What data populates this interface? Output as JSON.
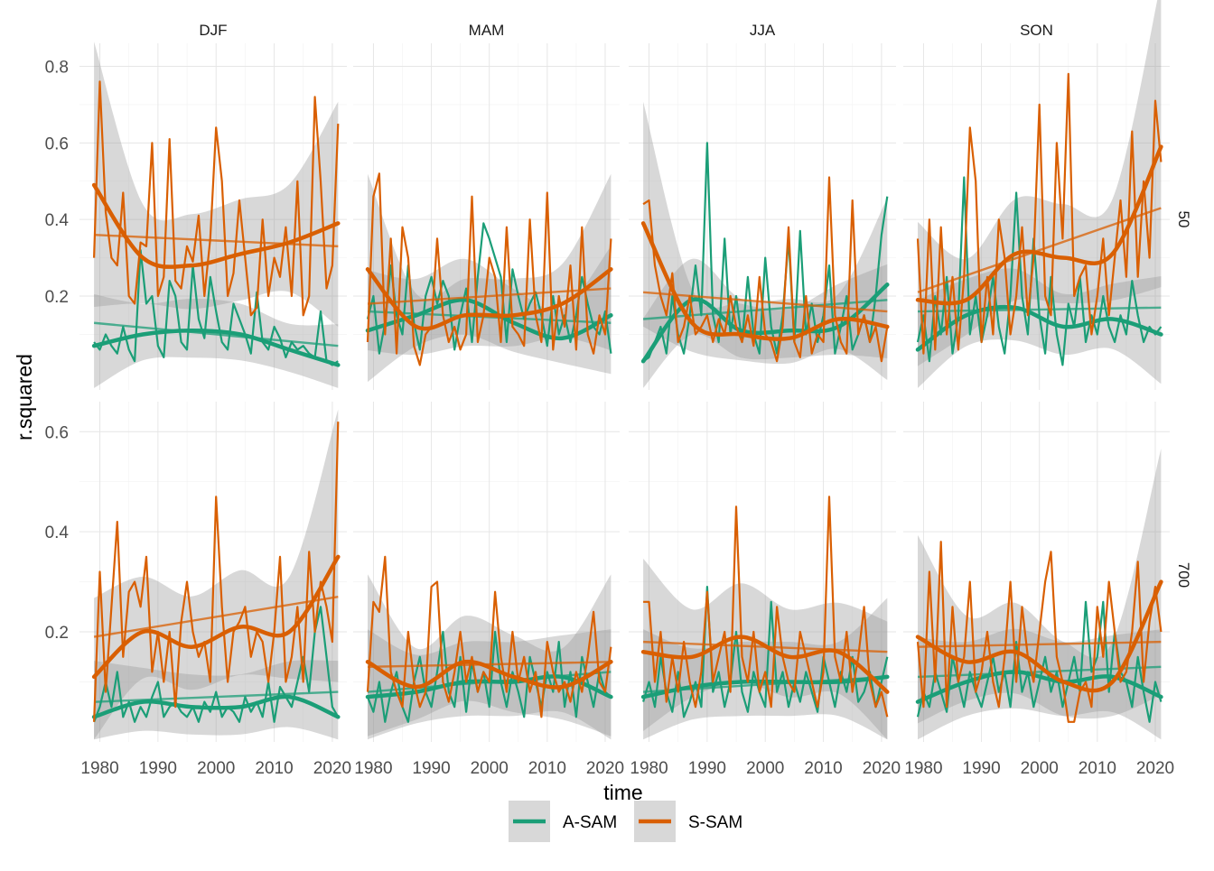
{
  "chart_data": {
    "type": "line",
    "xlabel": "time",
    "ylabel": "r.squared",
    "columns": [
      "DJF",
      "MAM",
      "JJA",
      "SON"
    ],
    "rows": [
      "50",
      "700"
    ],
    "x_ticks": [
      1980,
      1990,
      2000,
      2010,
      2020
    ],
    "xlim": [
      1976.5,
      2022.5
    ],
    "grid": true,
    "legend_position": "bottom",
    "legend": [
      {
        "name": "A-SAM",
        "color": "#1b9e77"
      },
      {
        "name": "S-SAM",
        "color": "#d95f02"
      }
    ],
    "years": [
      1979,
      1980,
      1981,
      1982,
      1983,
      1984,
      1985,
      1986,
      1987,
      1988,
      1989,
      1990,
      1991,
      1992,
      1993,
      1994,
      1995,
      1996,
      1997,
      1998,
      1999,
      2000,
      2001,
      2002,
      2003,
      2004,
      2005,
      2006,
      2007,
      2008,
      2009,
      2010,
      2011,
      2012,
      2013,
      2014,
      2015,
      2016,
      2017,
      2018,
      2019,
      2020,
      2021
    ],
    "rows_meta": [
      {
        "label": "50",
        "ylim": [
          -0.045,
          0.86
        ],
        "y_ticks": [
          0.2,
          0.4,
          0.6,
          0.8
        ]
      },
      {
        "label": "700",
        "ylim": [
          -0.02,
          0.66
        ],
        "y_ticks": [
          0.2,
          0.4,
          0.6
        ]
      }
    ],
    "panels": [
      {
        "row": "50",
        "col": "DJF",
        "A-SAM": {
          "values": [
            0.08,
            0.06,
            0.1,
            0.07,
            0.05,
            0.12,
            0.06,
            0.03,
            0.32,
            0.18,
            0.2,
            0.07,
            0.04,
            0.24,
            0.2,
            0.08,
            0.06,
            0.28,
            0.14,
            0.09,
            0.25,
            0.16,
            0.08,
            0.06,
            0.18,
            0.14,
            0.1,
            0.05,
            0.21,
            0.08,
            0.06,
            0.12,
            0.09,
            0.04,
            0.08,
            0.06,
            0.07,
            0.05,
            0.04,
            0.16,
            0.03,
            0.02,
            0.03
          ],
          "smooth": [
            0.07,
            0.1,
            0.11,
            0.1,
            0.06,
            0.02
          ],
          "trend": [
            0.13,
            0.07
          ]
        },
        "S-SAM": {
          "values": [
            0.3,
            0.76,
            0.42,
            0.3,
            0.28,
            0.47,
            0.2,
            0.18,
            0.34,
            0.33,
            0.6,
            0.2,
            0.25,
            0.61,
            0.24,
            0.22,
            0.33,
            0.29,
            0.41,
            0.2,
            0.35,
            0.64,
            0.5,
            0.2,
            0.26,
            0.45,
            0.3,
            0.15,
            0.17,
            0.4,
            0.2,
            0.3,
            0.25,
            0.38,
            0.2,
            0.5,
            0.15,
            0.2,
            0.72,
            0.5,
            0.22,
            0.28,
            0.65
          ],
          "smooth": [
            0.49,
            0.3,
            0.28,
            0.31,
            0.34,
            0.39
          ],
          "trend": [
            0.36,
            0.33
          ]
        }
      },
      {
        "row": "50",
        "col": "MAM",
        "A-SAM": {
          "values": [
            0.14,
            0.2,
            0.05,
            0.13,
            0.28,
            0.15,
            0.1,
            0.28,
            0.13,
            0.06,
            0.2,
            0.25,
            0.18,
            0.24,
            0.2,
            0.06,
            0.15,
            0.22,
            0.08,
            0.25,
            0.39,
            0.35,
            0.3,
            0.25,
            0.08,
            0.27,
            0.2,
            0.14,
            0.18,
            0.21,
            0.15,
            0.07,
            0.2,
            0.1,
            0.15,
            0.08,
            0.15,
            0.25,
            0.18,
            0.12,
            0.1,
            0.16,
            0.05
          ],
          "smooth": [
            0.11,
            0.15,
            0.19,
            0.13,
            0.09,
            0.15
          ],
          "trend": [
            0.16,
            0.13
          ]
        },
        "S-SAM": {
          "values": [
            0.08,
            0.46,
            0.52,
            0.1,
            0.35,
            0.05,
            0.38,
            0.3,
            0.07,
            0.02,
            0.1,
            0.12,
            0.35,
            0.15,
            0.08,
            0.12,
            0.06,
            0.1,
            0.46,
            0.08,
            0.15,
            0.3,
            0.25,
            0.08,
            0.38,
            0.12,
            0.1,
            0.07,
            0.4,
            0.15,
            0.08,
            0.47,
            0.06,
            0.2,
            0.12,
            0.28,
            0.06,
            0.38,
            0.1,
            0.05,
            0.15,
            0.1,
            0.35
          ],
          "smooth": [
            0.27,
            0.12,
            0.15,
            0.15,
            0.18,
            0.27
          ],
          "trend": [
            0.18,
            0.22
          ]
        }
      },
      {
        "row": "50",
        "col": "JJA",
        "A-SAM": {
          "values": [
            0.03,
            0.04,
            0.08,
            0.12,
            0.05,
            0.2,
            0.1,
            0.05,
            0.15,
            0.28,
            0.15,
            0.6,
            0.15,
            0.08,
            0.35,
            0.1,
            0.2,
            0.08,
            0.25,
            0.1,
            0.05,
            0.3,
            0.12,
            0.05,
            0.15,
            0.35,
            0.08,
            0.37,
            0.1,
            0.18,
            0.08,
            0.15,
            0.28,
            0.05,
            0.12,
            0.2,
            0.06,
            0.1,
            0.15,
            0.08,
            0.2,
            0.36,
            0.46
          ],
          "smooth": [
            0.03,
            0.19,
            0.11,
            0.11,
            0.12,
            0.23
          ],
          "trend": [
            0.14,
            0.19
          ]
        },
        "S-SAM": {
          "values": [
            0.44,
            0.45,
            0.28,
            0.2,
            0.15,
            0.26,
            0.08,
            0.12,
            0.2,
            0.1,
            0.12,
            0.15,
            0.08,
            0.14,
            0.1,
            0.2,
            0.12,
            0.08,
            0.15,
            0.07,
            0.25,
            0.1,
            0.08,
            0.03,
            0.12,
            0.38,
            0.08,
            0.04,
            0.2,
            0.05,
            0.1,
            0.08,
            0.51,
            0.15,
            0.08,
            0.05,
            0.45,
            0.1,
            0.15,
            0.08,
            0.12,
            0.03,
            0.12
          ],
          "smooth": [
            0.39,
            0.13,
            0.1,
            0.09,
            0.14,
            0.12
          ],
          "trend": [
            0.21,
            0.16
          ]
        }
      },
      {
        "row": "50",
        "col": "SON",
        "A-SAM": {
          "values": [
            0.08,
            0.15,
            0.03,
            0.2,
            0.1,
            0.25,
            0.05,
            0.15,
            0.51,
            0.1,
            0.2,
            0.08,
            0.15,
            0.25,
            0.12,
            0.05,
            0.2,
            0.47,
            0.2,
            0.1,
            0.35,
            0.15,
            0.05,
            0.25,
            0.1,
            0.02,
            0.18,
            0.12,
            0.25,
            0.08,
            0.15,
            0.1,
            0.2,
            0.12,
            0.08,
            0.15,
            0.1,
            0.24,
            0.15,
            0.08,
            0.12,
            0.1,
            0.12
          ],
          "smooth": [
            0.06,
            0.15,
            0.17,
            0.12,
            0.14,
            0.1
          ],
          "trend": [
            0.16,
            0.17
          ]
        },
        "S-SAM": {
          "values": [
            0.35,
            0.05,
            0.4,
            0.06,
            0.38,
            0.1,
            0.25,
            0.06,
            0.25,
            0.64,
            0.5,
            0.08,
            0.25,
            0.1,
            0.4,
            0.3,
            0.1,
            0.2,
            0.38,
            0.15,
            0.3,
            0.7,
            0.2,
            0.15,
            0.6,
            0.35,
            0.78,
            0.2,
            0.25,
            0.28,
            0.1,
            0.2,
            0.35,
            0.15,
            0.3,
            0.45,
            0.25,
            0.63,
            0.25,
            0.5,
            0.3,
            0.71,
            0.55
          ],
          "smooth": [
            0.19,
            0.19,
            0.31,
            0.3,
            0.31,
            0.59
          ],
          "trend": [
            0.21,
            0.43
          ]
        }
      },
      {
        "row": "700",
        "col": "DJF",
        "A-SAM": {
          "values": [
            0.02,
            0.05,
            0.1,
            0.05,
            0.12,
            0.03,
            0.06,
            0.02,
            0.05,
            0.03,
            0.07,
            0.1,
            0.03,
            0.05,
            0.06,
            0.04,
            0.03,
            0.05,
            0.02,
            0.06,
            0.04,
            0.08,
            0.03,
            0.05,
            0.04,
            0.02,
            0.07,
            0.04,
            0.06,
            0.03,
            0.1,
            0.02,
            0.09,
            0.07,
            0.05,
            0.1,
            0.15,
            0.08,
            0.2,
            0.25,
            0.15,
            0.05,
            0.03
          ],
          "smooth": [
            0.03,
            0.06,
            0.05,
            0.05,
            0.07,
            0.03
          ],
          "trend": [
            0.06,
            0.08
          ]
        },
        "S-SAM": {
          "values": [
            0.02,
            0.32,
            0.08,
            0.25,
            0.42,
            0.15,
            0.28,
            0.3,
            0.25,
            0.35,
            0.12,
            0.2,
            0.1,
            0.2,
            0.05,
            0.22,
            0.3,
            0.2,
            0.15,
            0.18,
            0.1,
            0.47,
            0.25,
            0.1,
            0.2,
            0.22,
            0.25,
            0.15,
            0.2,
            0.18,
            0.1,
            0.2,
            0.35,
            0.1,
            0.15,
            0.25,
            0.1,
            0.36,
            0.2,
            0.3,
            0.25,
            0.18,
            0.62
          ],
          "smooth": [
            0.11,
            0.2,
            0.17,
            0.21,
            0.2,
            0.35
          ],
          "trend": [
            0.19,
            0.27
          ]
        }
      },
      {
        "row": "700",
        "col": "MAM",
        "A-SAM": {
          "values": [
            0.07,
            0.04,
            0.1,
            0.02,
            0.08,
            0.12,
            0.05,
            0.02,
            0.1,
            0.15,
            0.08,
            0.05,
            0.12,
            0.2,
            0.08,
            0.05,
            0.15,
            0.04,
            0.14,
            0.08,
            0.12,
            0.05,
            0.2,
            0.1,
            0.05,
            0.12,
            0.08,
            0.03,
            0.15,
            0.1,
            0.05,
            0.12,
            0.08,
            0.18,
            0.05,
            0.12,
            0.03,
            0.15,
            0.1,
            0.05,
            0.12,
            0.08,
            0.07
          ],
          "smooth": [
            0.07,
            0.08,
            0.1,
            0.1,
            0.11,
            0.07
          ],
          "trend": [
            0.08,
            0.12
          ]
        },
        "S-SAM": {
          "values": [
            0.08,
            0.26,
            0.24,
            0.35,
            0.12,
            0.08,
            0.05,
            0.2,
            0.1,
            0.05,
            0.08,
            0.29,
            0.3,
            0.1,
            0.06,
            0.12,
            0.2,
            0.1,
            0.15,
            0.08,
            0.12,
            0.1,
            0.28,
            0.15,
            0.08,
            0.2,
            0.1,
            0.15,
            0.08,
            0.12,
            0.03,
            0.18,
            0.12,
            0.08,
            0.1,
            0.06,
            0.12,
            0.08,
            0.15,
            0.24,
            0.1,
            0.08,
            0.17
          ],
          "smooth": [
            0.14,
            0.09,
            0.14,
            0.11,
            0.09,
            0.14
          ],
          "trend": [
            0.13,
            0.14
          ]
        }
      },
      {
        "row": "700",
        "col": "JJA",
        "A-SAM": {
          "values": [
            0.06,
            0.1,
            0.05,
            0.15,
            0.08,
            0.04,
            0.12,
            0.03,
            0.06,
            0.1,
            0.05,
            0.29,
            0.08,
            0.12,
            0.05,
            0.1,
            0.2,
            0.08,
            0.04,
            0.12,
            0.08,
            0.05,
            0.26,
            0.08,
            0.12,
            0.05,
            0.1,
            0.06,
            0.12,
            0.08,
            0.04,
            0.15,
            0.1,
            0.05,
            0.12,
            0.08,
            0.15,
            0.06,
            0.08,
            0.12,
            0.05,
            0.1,
            0.15
          ],
          "smooth": [
            0.07,
            0.09,
            0.1,
            0.1,
            0.1,
            0.11
          ],
          "trend": [
            0.08,
            0.11
          ]
        },
        "S-SAM": {
          "values": [
            0.26,
            0.26,
            0.1,
            0.2,
            0.06,
            0.15,
            0.08,
            0.18,
            0.1,
            0.05,
            0.12,
            0.28,
            0.1,
            0.15,
            0.2,
            0.08,
            0.45,
            0.15,
            0.1,
            0.2,
            0.08,
            0.12,
            0.05,
            0.25,
            0.15,
            0.1,
            0.08,
            0.2,
            0.15,
            0.1,
            0.05,
            0.12,
            0.47,
            0.15,
            0.1,
            0.2,
            0.08,
            0.15,
            0.25,
            0.1,
            0.05,
            0.08,
            0.03
          ],
          "smooth": [
            0.16,
            0.15,
            0.19,
            0.15,
            0.16,
            0.08
          ],
          "trend": [
            0.18,
            0.16
          ]
        }
      },
      {
        "row": "700",
        "col": "SON",
        "A-SAM": {
          "values": [
            0.03,
            0.08,
            0.05,
            0.12,
            0.08,
            0.04,
            0.15,
            0.1,
            0.05,
            0.12,
            0.08,
            0.05,
            0.1,
            0.15,
            0.08,
            0.12,
            0.05,
            0.18,
            0.08,
            0.12,
            0.05,
            0.1,
            0.15,
            0.08,
            0.12,
            0.05,
            0.1,
            0.15,
            0.08,
            0.26,
            0.12,
            0.15,
            0.26,
            0.08,
            0.2,
            0.12,
            0.1,
            0.05,
            0.15,
            0.08,
            0.02,
            0.1,
            0.06
          ],
          "smooth": [
            0.06,
            0.1,
            0.12,
            0.1,
            0.11,
            0.07
          ],
          "trend": [
            0.11,
            0.13
          ]
        },
        "S-SAM": {
          "values": [
            0.18,
            0.05,
            0.32,
            0.1,
            0.38,
            0.05,
            0.25,
            0.1,
            0.15,
            0.3,
            0.08,
            0.12,
            0.2,
            0.1,
            0.05,
            0.15,
            0.3,
            0.1,
            0.25,
            0.15,
            0.1,
            0.2,
            0.3,
            0.36,
            0.15,
            0.1,
            0.02,
            0.02,
            0.08,
            0.1,
            0.05,
            0.25,
            0.15,
            0.3,
            0.2,
            0.1,
            0.12,
            0.2,
            0.34,
            0.1,
            0.22,
            0.29,
            0.2
          ],
          "smooth": [
            0.19,
            0.14,
            0.16,
            0.1,
            0.1,
            0.3
          ],
          "trend": [
            0.17,
            0.18
          ]
        }
      }
    ]
  }
}
